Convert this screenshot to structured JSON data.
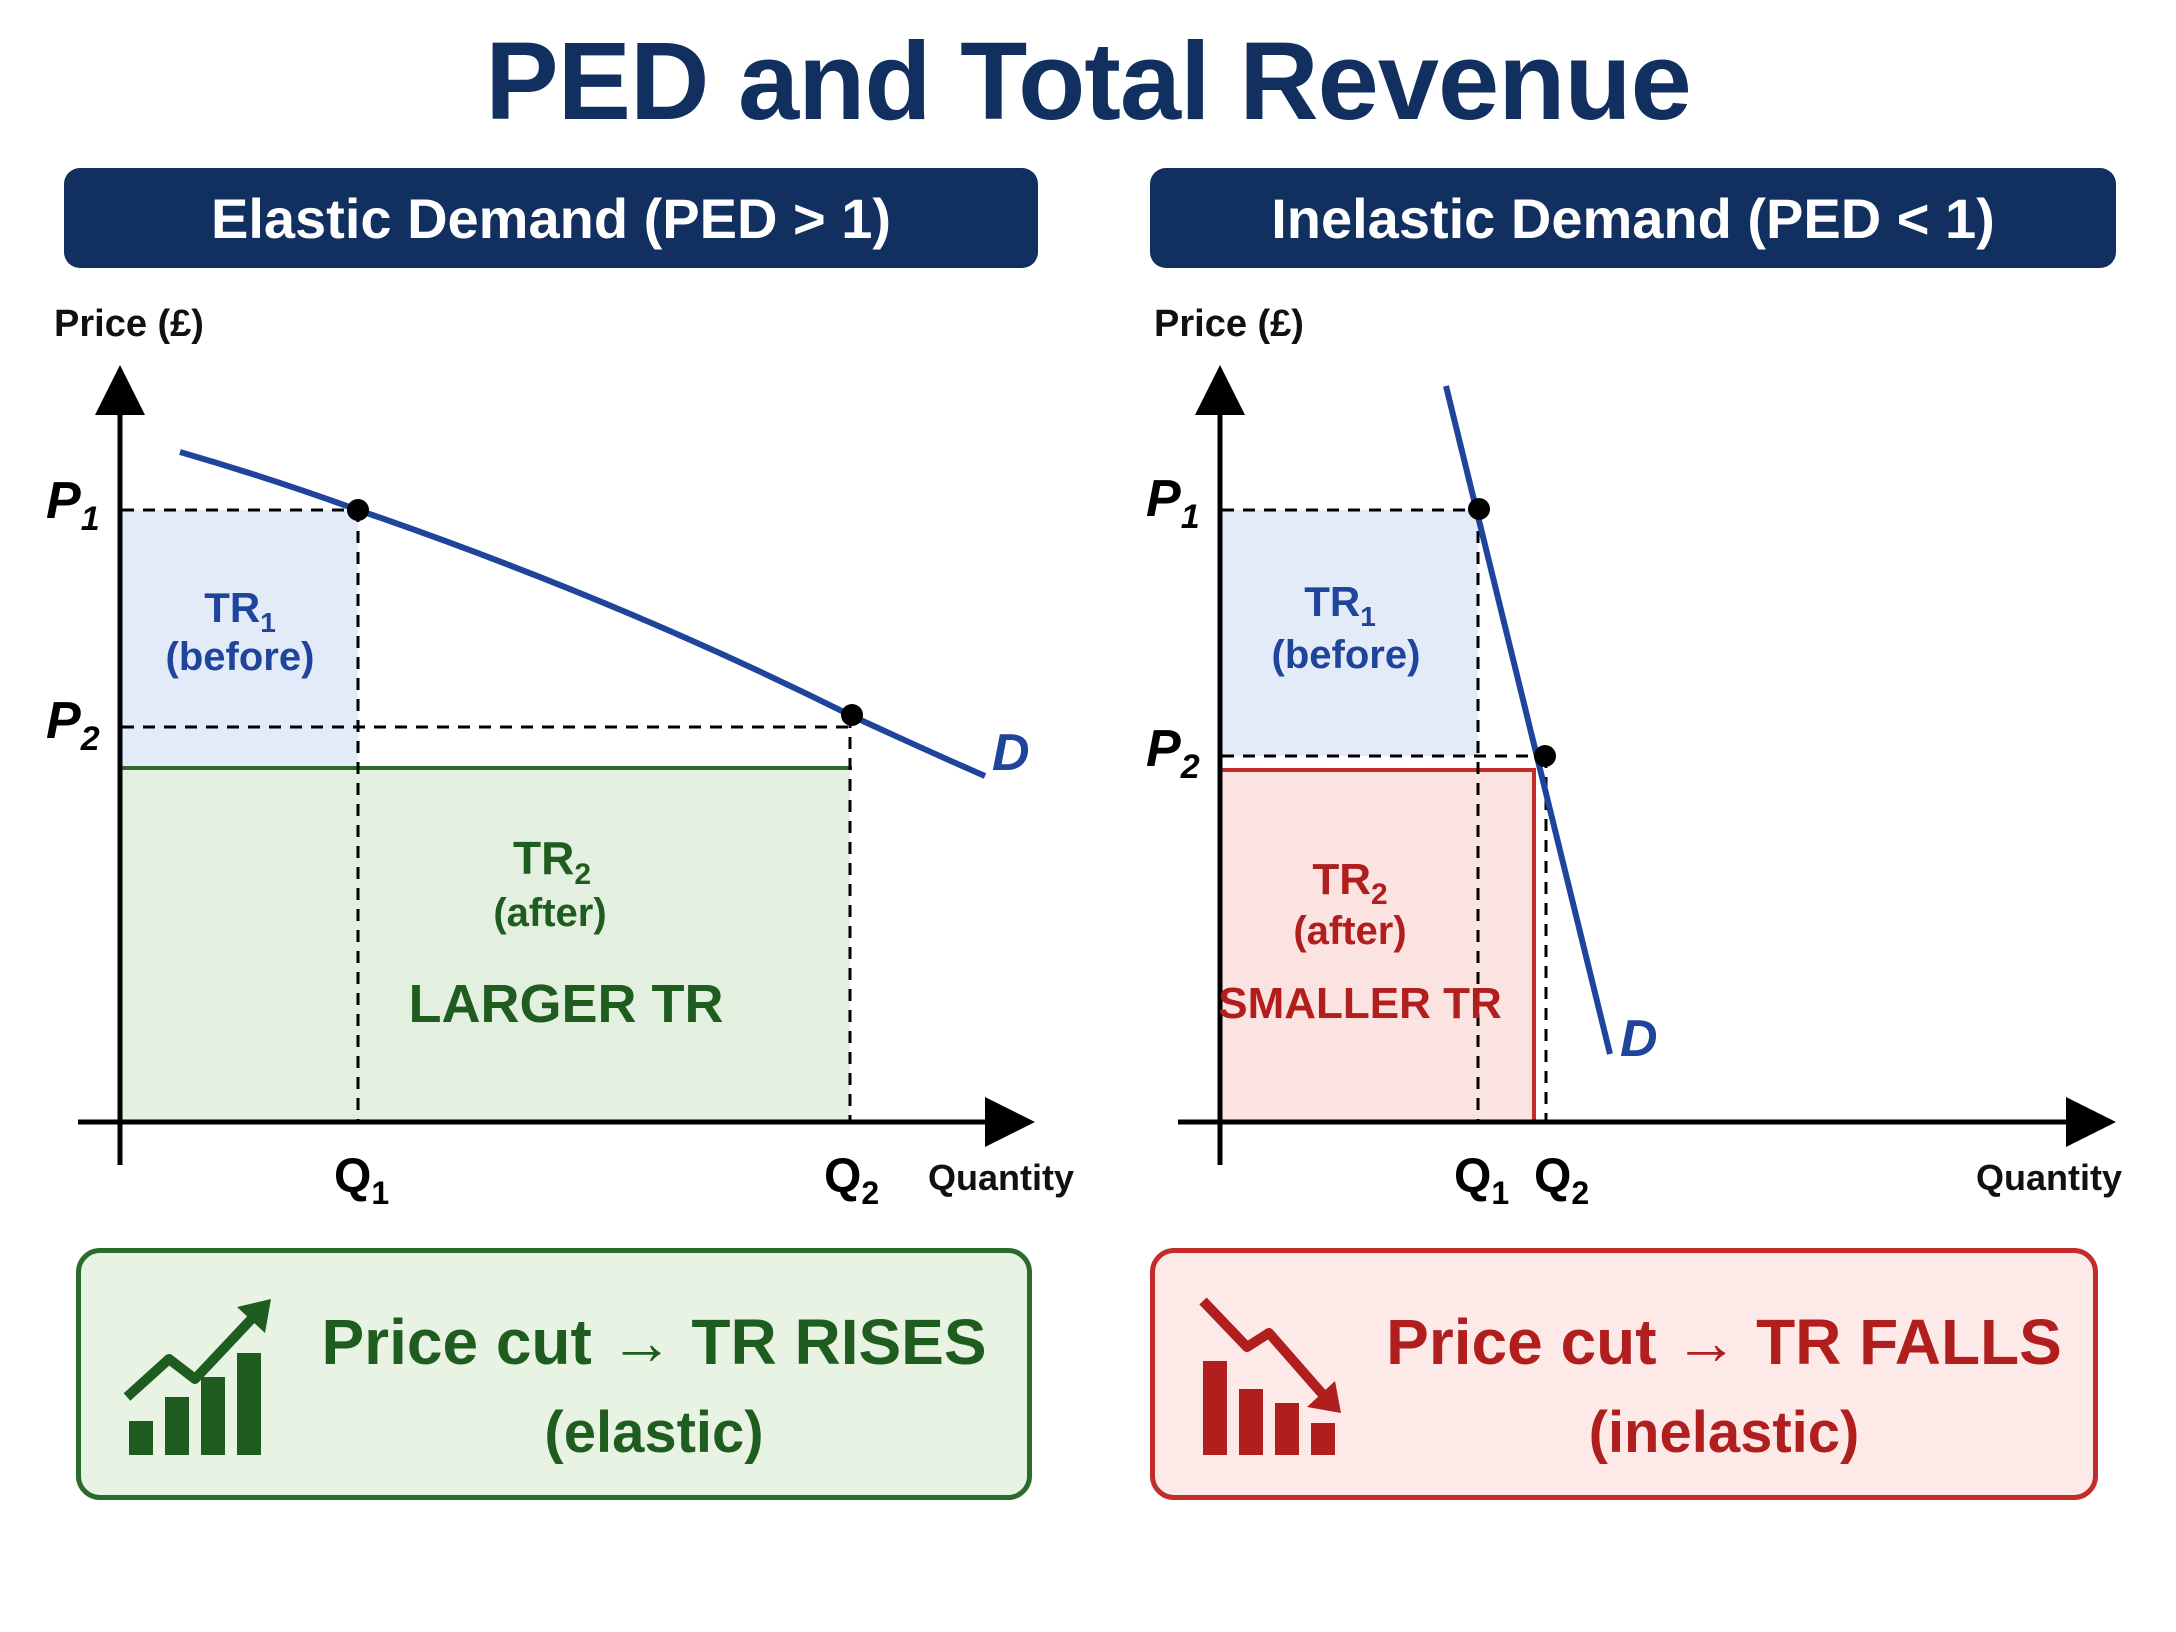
{
  "title": "PED and Total Revenue",
  "left_panel": {
    "header": "Elastic Demand (PED > 1)",
    "y_axis_label": "Price (£)",
    "x_axis_label": "Quantity",
    "p1": "P",
    "p1_sub": "1",
    "p2": "P",
    "p2_sub": "2",
    "q1": "Q",
    "q1_sub": "1",
    "q2": "Q",
    "q2_sub": "2",
    "curve_label": "D",
    "tr1_label": "TR",
    "tr1_sub": "1",
    "tr1_note": "(before)",
    "tr2_label": "TR",
    "tr2_sub": "2",
    "tr2_note": "(after)",
    "tr2_emphasis": "LARGER TR",
    "summary_main": "Price cut → TR RISES",
    "summary_sub": "(elastic)",
    "summary_icon": "chart-rising-icon"
  },
  "right_panel": {
    "header": "Inelastic Demand (PED < 1)",
    "y_axis_label": "Price (£)",
    "x_axis_label": "Quantity",
    "p1": "P",
    "p1_sub": "1",
    "p2": "P",
    "p2_sub": "2",
    "q1": "Q",
    "q1_sub": "1",
    "q2": "Q",
    "q2_sub": "2",
    "curve_label": "D",
    "tr1_label": "TR",
    "tr1_sub": "1",
    "tr1_note": "(before)",
    "tr2_label": "TR",
    "tr2_sub": "2",
    "tr2_note": "(after)",
    "tr2_emphasis": "SMALLER TR",
    "summary_main": "Price cut → TR FALLS",
    "summary_sub": "(inelastic)",
    "summary_icon": "chart-falling-icon"
  },
  "colors": {
    "navy": "#12305f",
    "curve": "#1f449c",
    "green": "#1f5c1f",
    "green_fill": "#e4f0df",
    "red": "#b01e1e",
    "red_fill": "#fbe3e2",
    "blue_fill": "#e3ebf8"
  }
}
